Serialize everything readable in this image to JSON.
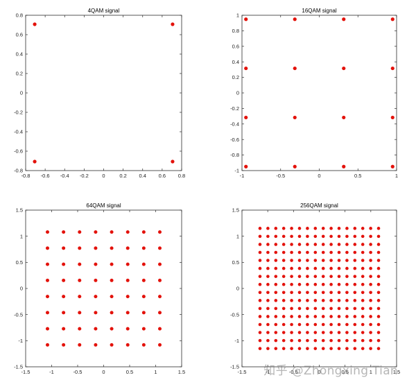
{
  "colors": {
    "point": "#e3120b",
    "axes": "#2b2b2b"
  },
  "watermark": "知乎 @Zhongxing Tian",
  "chart_data": [
    {
      "type": "scatter",
      "title": "4QAM signal",
      "xlim": [
        -0.8,
        0.8
      ],
      "ylim": [
        -0.8,
        0.8
      ],
      "xticks": [
        -0.8,
        -0.6,
        -0.4,
        -0.2,
        0,
        0.2,
        0.4,
        0.6,
        0.8
      ],
      "yticks": [
        -0.8,
        -0.6,
        -0.4,
        -0.2,
        0,
        0.2,
        0.4,
        0.6,
        0.8
      ],
      "xtick_labels": [
        "-0.8",
        "-0.6",
        "-0.4",
        "-0.2",
        "0",
        "0.2",
        "0.4",
        "0.6",
        "0.8"
      ],
      "ytick_labels": [
        "-0.8",
        "-0.6",
        "-0.4",
        "-0.2",
        "0",
        "0.2",
        "0.4",
        "0.6",
        "0.8"
      ],
      "grid": false,
      "series": [
        {
          "levels": [
            -0.7071,
            0.7071
          ]
        }
      ]
    },
    {
      "type": "scatter",
      "title": "16QAM signal",
      "xlim": [
        -1,
        1
      ],
      "ylim": [
        -1,
        1
      ],
      "xticks": [
        -1,
        -0.5,
        0,
        0.5,
        1
      ],
      "yticks": [
        -1,
        -0.8,
        -0.6,
        -0.4,
        -0.2,
        0,
        0.2,
        0.4,
        0.6,
        0.8,
        1
      ],
      "xtick_labels": [
        "-1",
        "-0.5",
        "0",
        "0.5",
        "1"
      ],
      "ytick_labels": [
        "-1",
        "-0.8",
        "-0.6",
        "-0.4",
        "-0.2",
        "0",
        "0.2",
        "0.4",
        "0.6",
        "0.8",
        "1"
      ],
      "grid": false,
      "series": [
        {
          "levels": [
            -0.9487,
            -0.3162,
            0.3162,
            0.9487
          ]
        }
      ]
    },
    {
      "type": "scatter",
      "title": "64QAM signal",
      "xlim": [
        -1.5,
        1.5
      ],
      "ylim": [
        -1.5,
        1.5
      ],
      "xticks": [
        -1.5,
        -1,
        -0.5,
        0,
        0.5,
        1,
        1.5
      ],
      "yticks": [
        -1.5,
        -1,
        -0.5,
        0,
        0.5,
        1,
        1.5
      ],
      "xtick_labels": [
        "-1.5",
        "-1",
        "-0.5",
        "0",
        "0.5",
        "1",
        "1.5"
      ],
      "ytick_labels": [
        "-1.5",
        "-1",
        "-0.5",
        "0",
        "0.5",
        "1",
        "1.5"
      ],
      "grid": false,
      "series": [
        {
          "levels": [
            -1.0801,
            -0.7715,
            -0.4629,
            -0.1543,
            0.1543,
            0.4629,
            0.7715,
            1.0801
          ]
        }
      ]
    },
    {
      "type": "scatter",
      "title": "256QAM signal",
      "xlim": [
        -1.5,
        1.5
      ],
      "ylim": [
        -1.5,
        1.5
      ],
      "xticks": [
        -1.5,
        -1,
        -0.5,
        0,
        0.5,
        1,
        1.5
      ],
      "yticks": [
        -1.5,
        -1,
        -0.5,
        0,
        0.5,
        1,
        1.5
      ],
      "xtick_labels": [
        "-1.5",
        "-1",
        "-0.5",
        "0",
        "0.5",
        "1",
        "1.5"
      ],
      "ytick_labels": [
        "-1.5",
        "-1",
        "-0.5",
        "0",
        "0.5",
        "1",
        "1.5"
      ],
      "grid": false,
      "series": [
        {
          "levels": [
            -1.1505,
            -0.9971,
            -0.8437,
            -0.6903,
            -0.5369,
            -0.3835,
            -0.2301,
            -0.0767,
            0.0767,
            0.2301,
            0.3835,
            0.5369,
            0.6903,
            0.8437,
            0.9971,
            1.1505
          ]
        }
      ]
    }
  ]
}
